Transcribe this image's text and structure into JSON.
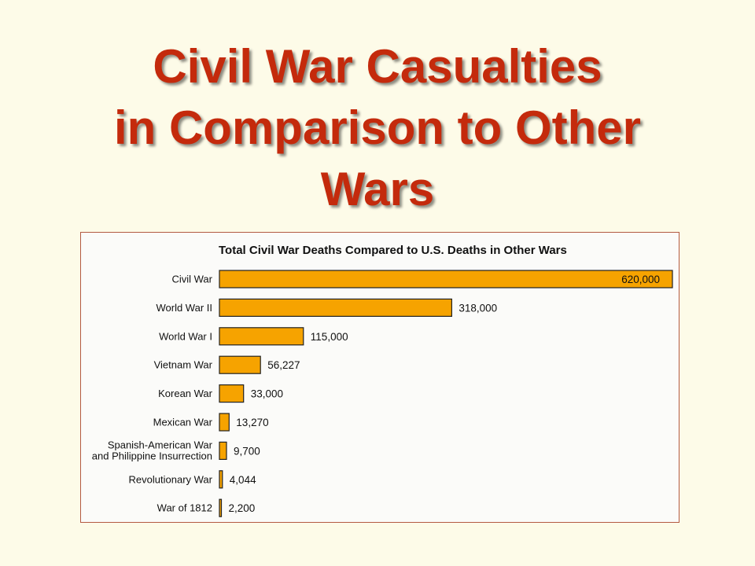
{
  "slide": {
    "title_lines": [
      "Civil War Casualties",
      "in Comparison to Other",
      "Wars"
    ]
  },
  "colors": {
    "background": "#fdfbe8",
    "title": "#c42a0c",
    "bar_fill": "#f6a300",
    "bar_stroke": "#222222",
    "panel_border": "#b35a42"
  },
  "chart_data": {
    "type": "bar",
    "orientation": "horizontal",
    "title": "Total Civil War Deaths Compared to U.S. Deaths in Other Wars",
    "categories": [
      [
        "Civil War"
      ],
      [
        "World War II"
      ],
      [
        "World War I"
      ],
      [
        "Vietnam War"
      ],
      [
        "Korean War"
      ],
      [
        "Mexican War"
      ],
      [
        "Spanish-American War",
        "and Philippine Insurrection"
      ],
      [
        "Revolutionary War"
      ],
      [
        "War of 1812"
      ]
    ],
    "values": [
      620000,
      318000,
      115000,
      56227,
      33000,
      13270,
      9700,
      4044,
      2200
    ],
    "value_labels": [
      "620,000",
      "318,000",
      "115,000",
      "56,227",
      "33,000",
      "13,270",
      "9,700",
      "4,044",
      "2,200"
    ],
    "xlim": [
      0,
      620000
    ],
    "grid": false,
    "legend": "none"
  }
}
